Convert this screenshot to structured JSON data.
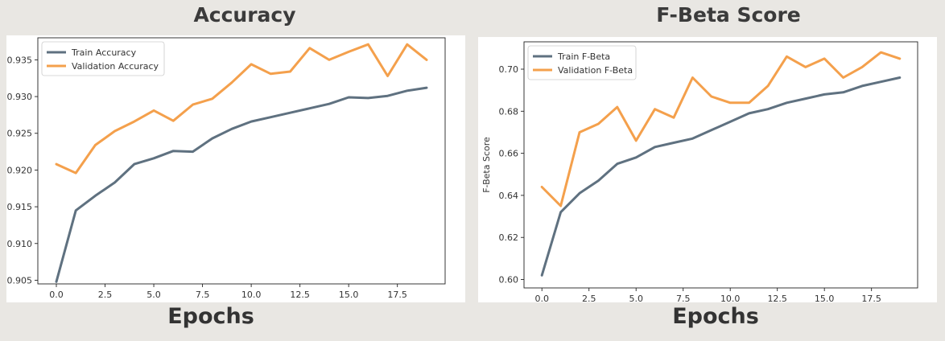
{
  "chart_data": [
    {
      "type": "line",
      "title": "Accuracy",
      "xlabel": "Epochs",
      "ylabel": "",
      "x": [
        0,
        1,
        2,
        3,
        4,
        5,
        6,
        7,
        8,
        9,
        10,
        11,
        12,
        13,
        14,
        15,
        16,
        17,
        18,
        19
      ],
      "xlim": [
        -0.95,
        19.95
      ],
      "ylim": [
        0.9045,
        0.938
      ],
      "xticks": [
        0.0,
        2.5,
        5.0,
        7.5,
        10.0,
        12.5,
        15.0,
        17.5
      ],
      "xtick_labels": [
        "0.0",
        "2.5",
        "5.0",
        "7.5",
        "10.0",
        "12.5",
        "15.0",
        "17.5"
      ],
      "yticks": [
        0.905,
        0.91,
        0.915,
        0.92,
        0.925,
        0.93,
        0.935
      ],
      "ytick_labels": [
        "0.905",
        "0.910",
        "0.915",
        "0.920",
        "0.925",
        "0.930",
        "0.935"
      ],
      "legend_position": "upper-left",
      "grid": false,
      "series": [
        {
          "name": "Train Accuracy",
          "color": "#5f7180",
          "values": [
            0.9048,
            0.9145,
            0.9165,
            0.9183,
            0.9208,
            0.9216,
            0.9226,
            0.9225,
            0.9243,
            0.9256,
            0.9266,
            0.9272,
            0.9278,
            0.9284,
            0.929,
            0.9299,
            0.9298,
            0.9301,
            0.9308,
            0.9312
          ]
        },
        {
          "name": "Validation Accuracy",
          "color": "#f4a04c",
          "values": [
            0.9208,
            0.9196,
            0.9234,
            0.9253,
            0.9266,
            0.9281,
            0.9267,
            0.9289,
            0.9297,
            0.9319,
            0.9344,
            0.9331,
            0.9334,
            0.9366,
            0.935,
            0.9361,
            0.9371,
            0.9328,
            0.9371,
            0.935
          ]
        }
      ]
    },
    {
      "type": "line",
      "title": "F-Beta Score",
      "xlabel": "Epochs",
      "ylabel": "F-Beta Score",
      "x": [
        0,
        1,
        2,
        3,
        4,
        5,
        6,
        7,
        8,
        9,
        10,
        11,
        12,
        13,
        14,
        15,
        16,
        17,
        18,
        19
      ],
      "xlim": [
        -0.95,
        19.95
      ],
      "ylim": [
        0.596,
        0.713
      ],
      "xticks": [
        0.0,
        2.5,
        5.0,
        7.5,
        10.0,
        12.5,
        15.0,
        17.5
      ],
      "xtick_labels": [
        "0.0",
        "2.5",
        "5.0",
        "7.5",
        "10.0",
        "12.5",
        "15.0",
        "17.5"
      ],
      "yticks": [
        0.6,
        0.62,
        0.64,
        0.66,
        0.68,
        0.7
      ],
      "ytick_labels": [
        "0.60",
        "0.62",
        "0.64",
        "0.66",
        "0.68",
        "0.70"
      ],
      "legend_position": "upper-left",
      "grid": false,
      "series": [
        {
          "name": "Train F-Beta",
          "color": "#5f7180",
          "values": [
            0.602,
            0.632,
            0.641,
            0.647,
            0.655,
            0.658,
            0.663,
            0.665,
            0.667,
            0.671,
            0.675,
            0.679,
            0.681,
            0.684,
            0.686,
            0.688,
            0.689,
            0.692,
            0.694,
            0.696
          ]
        },
        {
          "name": "Validation F-Beta",
          "color": "#f4a04c",
          "values": [
            0.644,
            0.635,
            0.67,
            0.674,
            0.682,
            0.666,
            0.681,
            0.677,
            0.696,
            0.687,
            0.684,
            0.684,
            0.692,
            0.706,
            0.701,
            0.705,
            0.696,
            0.701,
            0.708,
            0.705
          ]
        }
      ]
    }
  ]
}
